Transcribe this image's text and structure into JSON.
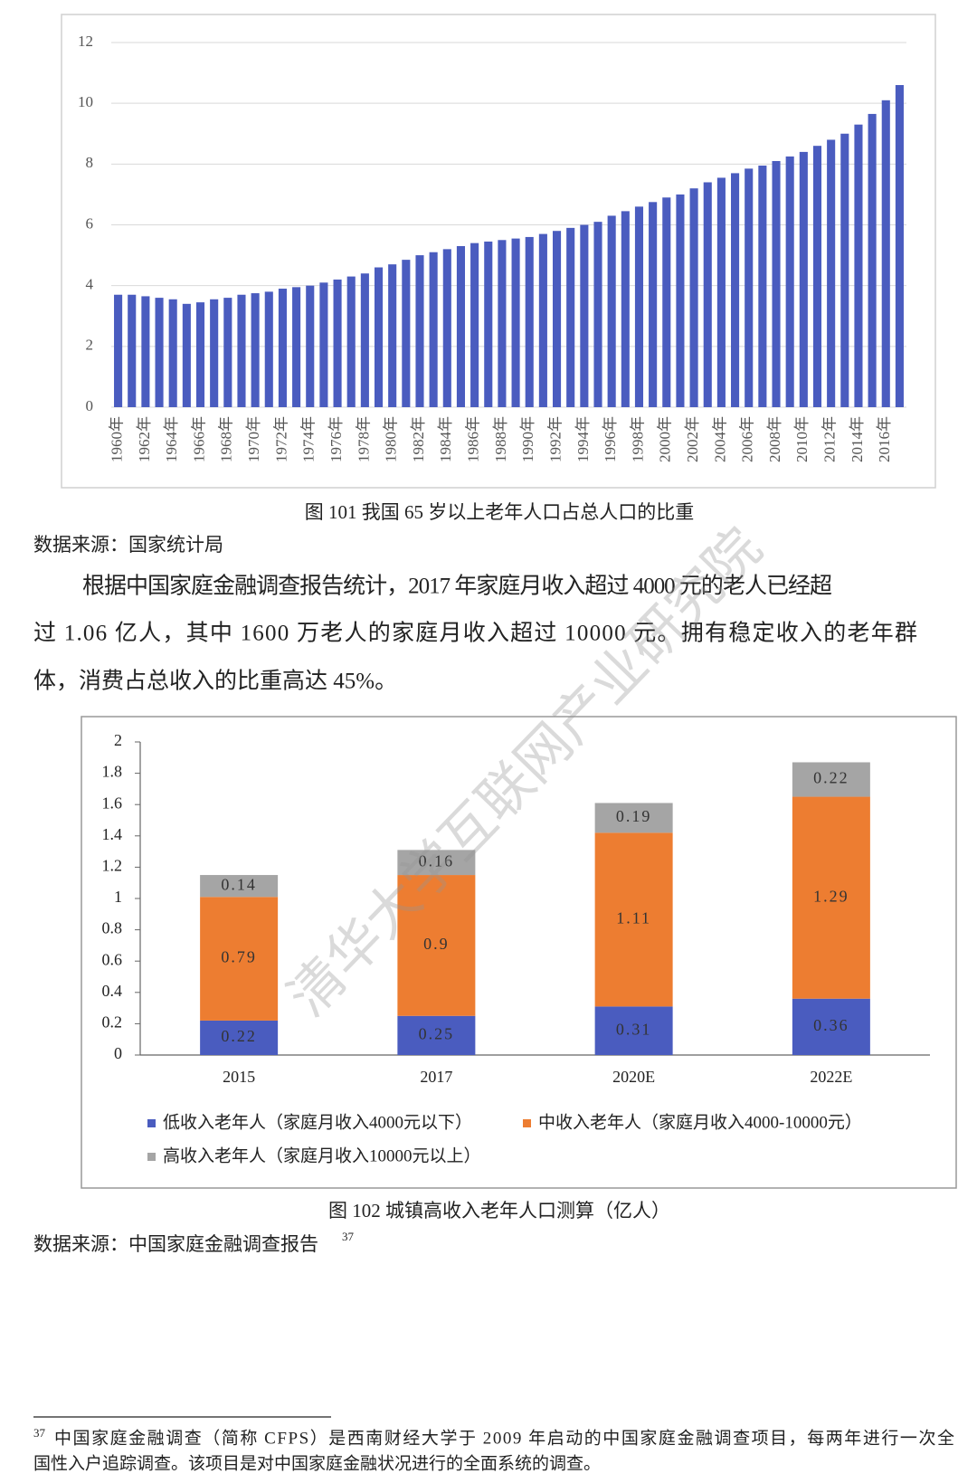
{
  "charts": [
    {
      "chart_data": {
        "type": "bar",
        "color": "#4a5cbf",
        "grid": true,
        "categories": [
          "1960年",
          null,
          "1962年",
          null,
          "1964年",
          null,
          "1966年",
          null,
          "1968年",
          null,
          "1970年",
          null,
          "1972年",
          null,
          "1974年",
          null,
          "1976年",
          null,
          "1978年",
          null,
          "1980年",
          null,
          "1982年",
          null,
          "1984年",
          null,
          "1986年",
          null,
          "1988年",
          null,
          "1990年",
          null,
          "1992年",
          null,
          "1994年",
          null,
          "1996年",
          null,
          "1998年",
          null,
          "2000年",
          null,
          "2002年",
          null,
          "2004年",
          null,
          "2006年",
          null,
          "2008年",
          null,
          "2010年",
          null,
          "2012年",
          null,
          "2014年",
          null,
          "2016年",
          null
        ],
        "values": [
          3.7,
          3.7,
          3.65,
          3.6,
          3.55,
          3.4,
          3.45,
          3.55,
          3.6,
          3.7,
          3.75,
          3.8,
          3.9,
          3.95,
          4.0,
          4.1,
          4.2,
          4.3,
          4.4,
          4.6,
          4.7,
          4.85,
          5.0,
          5.1,
          5.2,
          5.3,
          5.4,
          5.45,
          5.5,
          5.55,
          5.6,
          5.7,
          5.8,
          5.9,
          6.0,
          6.1,
          6.3,
          6.45,
          6.6,
          6.75,
          6.9,
          7.0,
          7.2,
          7.4,
          7.55,
          7.7,
          7.85,
          7.95,
          8.1,
          8.25,
          8.4,
          8.6,
          8.8,
          9.0,
          9.3,
          9.65,
          10.1,
          10.6
        ],
        "ylim": [
          0,
          12
        ],
        "yticks": [
          0,
          2,
          4,
          6,
          8,
          10,
          12
        ]
      },
      "caption": "图  101  我国 65 岁以上老年人口占总人口的比重",
      "source": "数据来源：国家统计局"
    },
    {
      "chart_data": {
        "type": "stacked_bar",
        "grid": false,
        "categories": [
          "2015",
          "2017",
          "2020E",
          "2022E"
        ],
        "series": [
          {
            "name": "低收入老年人（家庭月收入4000元以下）",
            "color": "#4a5cbf",
            "values": [
              0.22,
              0.25,
              0.31,
              0.36
            ]
          },
          {
            "name": "中收入老年人（家庭月收入4000-10000元）",
            "color": "#ed7d31",
            "values": [
              0.79,
              0.9,
              1.11,
              1.29
            ]
          },
          {
            "name": "高收入老年人（家庭月收入10000元以上）",
            "color": "#a5a5a5",
            "values": [
              0.14,
              0.16,
              0.19,
              0.22
            ]
          }
        ],
        "ylim": [
          0,
          2
        ],
        "yticks": [
          0,
          0.2,
          0.4,
          0.6,
          0.8,
          1,
          1.2,
          1.4,
          1.6,
          1.8,
          2
        ]
      },
      "caption": "图  102  城镇高收入老年人口测算（亿人）",
      "source": "数据来源：中国家庭金融调查报告",
      "source_note": "37"
    }
  ],
  "paragraph": [
    "根据中国家庭金融调查报告统计，2017 年家庭月收入超过 4000 元的老人已经超",
    "过 1.06 亿人，其中 1600 万老人的家庭月收入超过 10000 元。拥有稳定收入的老年群",
    "体，消费占总收入的比重高达 45%。"
  ],
  "footnote": {
    "number": "37",
    "lines": [
      "中国家庭金融调查（简称 CFPS）是西南财经大学于 2009 年启动的中国家庭金融调查项目，每两年进行一次全",
      "国性入户追踪调查。该项目是对中国家庭金融状况进行的全面系统的调查。"
    ]
  },
  "watermark": "清华大学互联网产业研究院"
}
